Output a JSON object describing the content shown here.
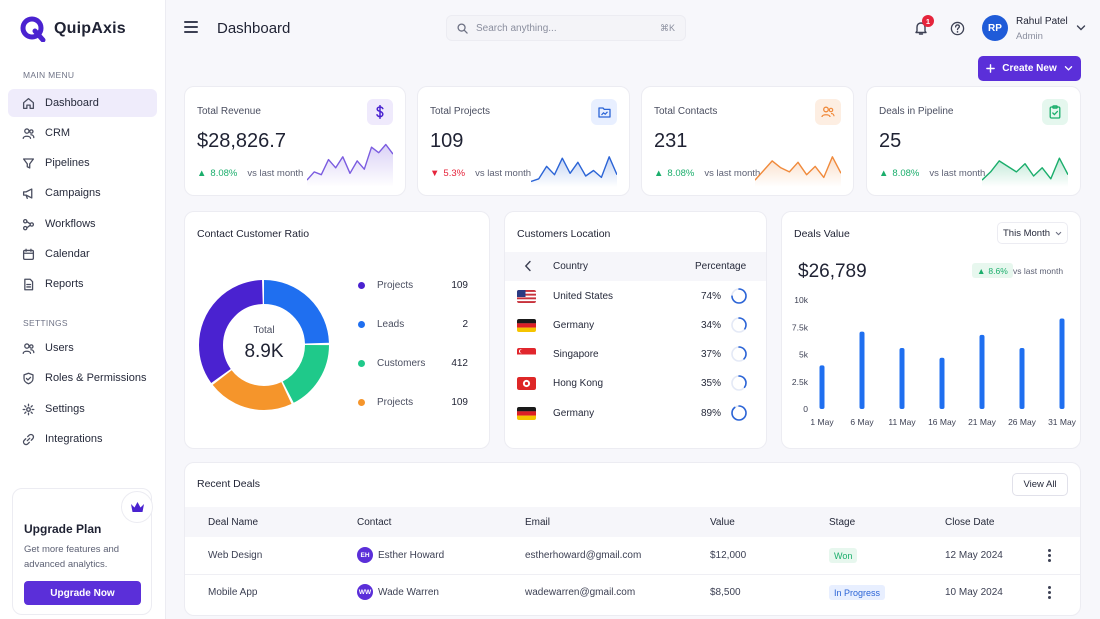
{
  "brand": {
    "name": "QuipAxis"
  },
  "sidebar": {
    "main_label": "MAIN MENU",
    "main_items": [
      {
        "label": "Dashboard",
        "icon": "home-icon",
        "active": true
      },
      {
        "label": "CRM",
        "icon": "users-icon"
      },
      {
        "label": "Pipelines",
        "icon": "filter-icon"
      },
      {
        "label": "Campaigns",
        "icon": "megaphone-icon"
      },
      {
        "label": "Workflows",
        "icon": "workflow-icon"
      },
      {
        "label": "Calendar",
        "icon": "calendar-icon"
      },
      {
        "label": "Reports",
        "icon": "report-icon"
      }
    ],
    "settings_label": "SETTINGS",
    "settings_items": [
      {
        "label": "Users",
        "icon": "user-group-icon"
      },
      {
        "label": "Roles & Permissions",
        "icon": "shield-icon"
      },
      {
        "label": "Settings",
        "icon": "gear-icon"
      },
      {
        "label": "Integrations",
        "icon": "link-icon"
      }
    ],
    "upgrade": {
      "title": "Upgrade Plan",
      "text": "Get more features and advanced analytics.",
      "button": "Upgrade Now"
    }
  },
  "header": {
    "title": "Dashboard",
    "search_placeholder": "Search anything...",
    "search_shortcut": "⌘K",
    "notifications_count": "1",
    "user": {
      "initials": "RP",
      "name": "Rahul Patel",
      "role": "Admin"
    },
    "create_button": "Create New"
  },
  "stats": [
    {
      "label": "Total Revenue",
      "value": "$28,826.7",
      "delta": "8.08%",
      "trend": "up",
      "vs": "vs last month",
      "color": "#7b5ce0",
      "icon": "dollar-icon",
      "spark": [
        10,
        22,
        18,
        40,
        28,
        44,
        20,
        38,
        26,
        58,
        50,
        62,
        48
      ]
    },
    {
      "label": "Total Projects",
      "value": "109",
      "delta": "5.3%",
      "trend": "down",
      "vs": "vs last month",
      "color": "#2b64d6",
      "icon": "folder-icon",
      "spark": [
        8,
        12,
        30,
        18,
        42,
        20,
        36,
        16,
        24,
        14,
        44,
        18
      ]
    },
    {
      "label": "Total Contacts",
      "value": "231",
      "delta": "8.08%",
      "trend": "up",
      "vs": "vs last month",
      "color": "#f08a3c",
      "icon": "contacts-icon",
      "spark": [
        10,
        24,
        38,
        28,
        22,
        36,
        18,
        30,
        14,
        44,
        20
      ]
    },
    {
      "label": "Deals in Pipeline",
      "value": "25",
      "delta": "8.08%",
      "trend": "up",
      "vs": "vs last month",
      "color": "#1bae6c",
      "icon": "clipboard-icon",
      "spark": [
        10,
        22,
        38,
        30,
        22,
        34,
        16,
        28,
        12,
        42,
        18
      ]
    }
  ],
  "ratio": {
    "title": "Contact Customer Ratio",
    "total_label": "Total",
    "total_value": "8.9K",
    "legend": [
      {
        "label": "Projects",
        "value": "109",
        "color": "#4a22d0"
      },
      {
        "label": "Leads",
        "value": "2",
        "color": "#1f6ff0"
      },
      {
        "label": "Customers",
        "value": "412",
        "color": "#1fc98a"
      },
      {
        "label": "Projects",
        "value": "109",
        "color": "#f5952b"
      }
    ],
    "segments": [
      {
        "color": "#1f6ff0",
        "fraction": 0.25
      },
      {
        "color": "#1fc98a",
        "fraction": 0.18
      },
      {
        "color": "#f5952b",
        "fraction": 0.22
      },
      {
        "color": "#4a22d0",
        "fraction": 0.35
      }
    ]
  },
  "location": {
    "title": "Customers Location",
    "col_country": "Country",
    "col_percentage": "Percentage",
    "rows": [
      {
        "country": "United States",
        "pct": "74%",
        "flag": "us"
      },
      {
        "country": "Germany",
        "pct": "34%",
        "flag": "de"
      },
      {
        "country": "Singapore",
        "pct": "37%",
        "flag": "sg"
      },
      {
        "country": "Hong Kong",
        "pct": "35%",
        "flag": "hk"
      },
      {
        "country": "Germany",
        "pct": "89%",
        "flag": "de"
      }
    ]
  },
  "deals_value": {
    "title": "Deals Value",
    "period": "This Month",
    "value": "$26,789",
    "delta": "8.6%",
    "vs": "vs last month",
    "color": "#1f6ff0"
  },
  "chart_data": {
    "type": "bar",
    "categories": [
      "1 May",
      "6 May",
      "11 May",
      "16 May",
      "21 May",
      "26 May",
      "31 May"
    ],
    "values": [
      4000,
      7100,
      5600,
      4700,
      6800,
      5600,
      8300
    ],
    "ylim": [
      0,
      10000
    ],
    "yticks": [
      "0",
      "2.5k",
      "5k",
      "7.5k",
      "10k"
    ],
    "grid": false,
    "legend": "none"
  },
  "recent_deals": {
    "title": "Recent Deals",
    "view_all": "View All",
    "columns": [
      "Deal Name",
      "Contact",
      "Email",
      "Value",
      "Stage",
      "Close Date"
    ],
    "rows": [
      {
        "deal": "Web Design",
        "initials": "EH",
        "contact": "Esther Howard",
        "email": "estherhoward@gmail.com",
        "value": "$12,000",
        "stage": "Won",
        "stage_type": "won",
        "close": "12 May 2024"
      },
      {
        "deal": "Mobile App",
        "initials": "WW",
        "contact": "Wade Warren",
        "email": "wadewarren@gmail.com",
        "value": "$8,500",
        "stage": "In Progress",
        "stage_type": "progress",
        "close": "10 May 2024"
      }
    ]
  }
}
